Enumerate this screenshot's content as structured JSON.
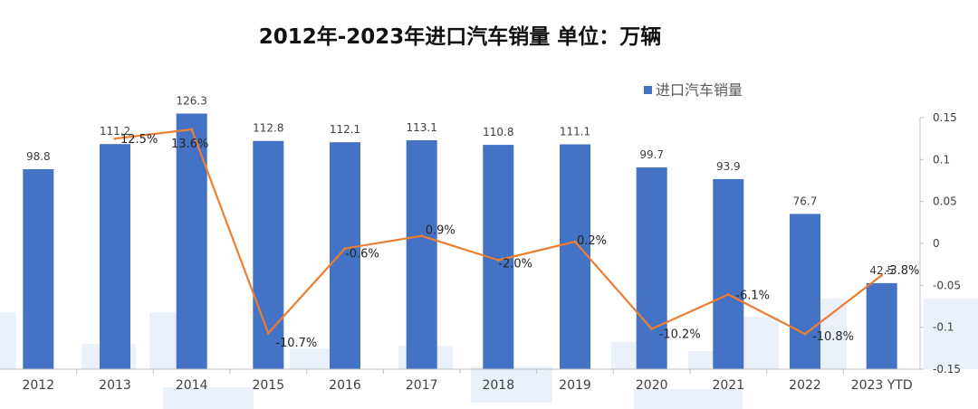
{
  "chart_data": {
    "type": "bar",
    "title": "2012年-2023年进口汽车销量  单位：万辆",
    "legend": {
      "label": "进口汽车销量",
      "position": "top-right"
    },
    "categories": [
      "2012",
      "2013",
      "2014",
      "2015",
      "2016",
      "2017",
      "2018",
      "2019",
      "2020",
      "2021",
      "2022",
      "2023 YTD"
    ],
    "series": [
      {
        "name": "进口汽车销量",
        "type": "bar",
        "axis": "left",
        "values": [
          98.8,
          111.2,
          126.3,
          112.8,
          112.1,
          113.1,
          110.8,
          111.1,
          99.7,
          93.9,
          76.7,
          42.5
        ],
        "labels": [
          "98.8",
          "111.2",
          "126.3",
          "112.8",
          "112.1",
          "113.1",
          "110.8",
          "111.1",
          "99.7",
          "93.9",
          "76.7",
          "42.5"
        ]
      },
      {
        "type": "line",
        "axis": "right",
        "values": [
          null,
          0.125,
          0.136,
          -0.107,
          -0.006,
          0.009,
          -0.02,
          0.002,
          -0.102,
          -0.061,
          -0.108,
          -0.038
        ],
        "labels": [
          "",
          "12.5%",
          "13.6%",
          "-10.7%",
          "-0.6%",
          "0.9%",
          "-2.0%",
          "0.2%",
          "-10.2%",
          "-6.1%",
          "-10.8%",
          "-3.8%"
        ]
      }
    ],
    "left_axis": {
      "ylim": [
        0,
        140
      ],
      "visible": false
    },
    "right_axis": {
      "ylim": [
        -0.15,
        0.15
      ],
      "ticks": [
        0.15,
        0.1,
        0.05,
        0,
        -0.05,
        -0.1,
        -0.15
      ],
      "tick_labels": [
        "0.15",
        "0.1",
        "0.05",
        "0",
        "-0.05",
        "-0.1",
        "-0.15"
      ]
    },
    "grid": false,
    "colors": {
      "bar": "#4472C4",
      "line": "#ED7D31",
      "axis": "#BFBFBF"
    }
  }
}
